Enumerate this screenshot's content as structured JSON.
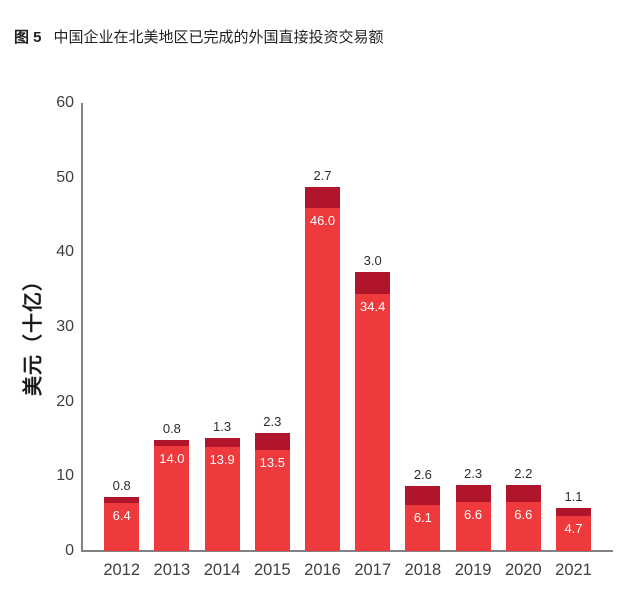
{
  "header": {
    "figure_label": "图 5",
    "title": "中国企业在北美地区已完成的外国直接投资交易额"
  },
  "chart_data": {
    "type": "bar",
    "stacked": true,
    "title": "图 5 中国企业在北美地区已完成的外国直接投资交易额",
    "ylabel": "美元（十亿）",
    "xlabel": "",
    "ylim": [
      0,
      60
    ],
    "yticks": [
      0,
      10,
      20,
      30,
      40,
      50,
      60
    ],
    "grid": false,
    "legend": "none",
    "categories": [
      "2012",
      "2013",
      "2014",
      "2015",
      "2016",
      "2017",
      "2018",
      "2019",
      "2020",
      "2021"
    ],
    "series": [
      {
        "name": "bottom-segment",
        "color": "#EE3A3C",
        "values": [
          6.4,
          14.0,
          13.9,
          13.5,
          46.0,
          34.4,
          6.1,
          6.6,
          6.6,
          4.7
        ],
        "labels": [
          "6.4",
          "14.0",
          "13.9",
          "13.5",
          "46.0",
          "34.4",
          "6.1",
          "6.6",
          "6.6",
          "4.7"
        ],
        "label_position": "inside-top",
        "label_color": "#FFFFFF"
      },
      {
        "name": "top-segment",
        "color": "#B0152B",
        "values": [
          0.8,
          0.8,
          1.3,
          2.3,
          2.7,
          3.0,
          2.6,
          2.3,
          2.2,
          1.1
        ],
        "labels": [
          "0.8",
          "0.8",
          "1.3",
          "2.3",
          "2.7",
          "3.0",
          "2.6",
          "2.3",
          "2.2",
          "1.1"
        ],
        "label_position": "above",
        "label_color": "#2D2D2D"
      }
    ]
  },
  "colors": {
    "bar_bright": "#EE3A3C",
    "bar_dark": "#B0152B",
    "axis": "#808285",
    "tick_text": "#404040",
    "title_text": "#231F20"
  }
}
